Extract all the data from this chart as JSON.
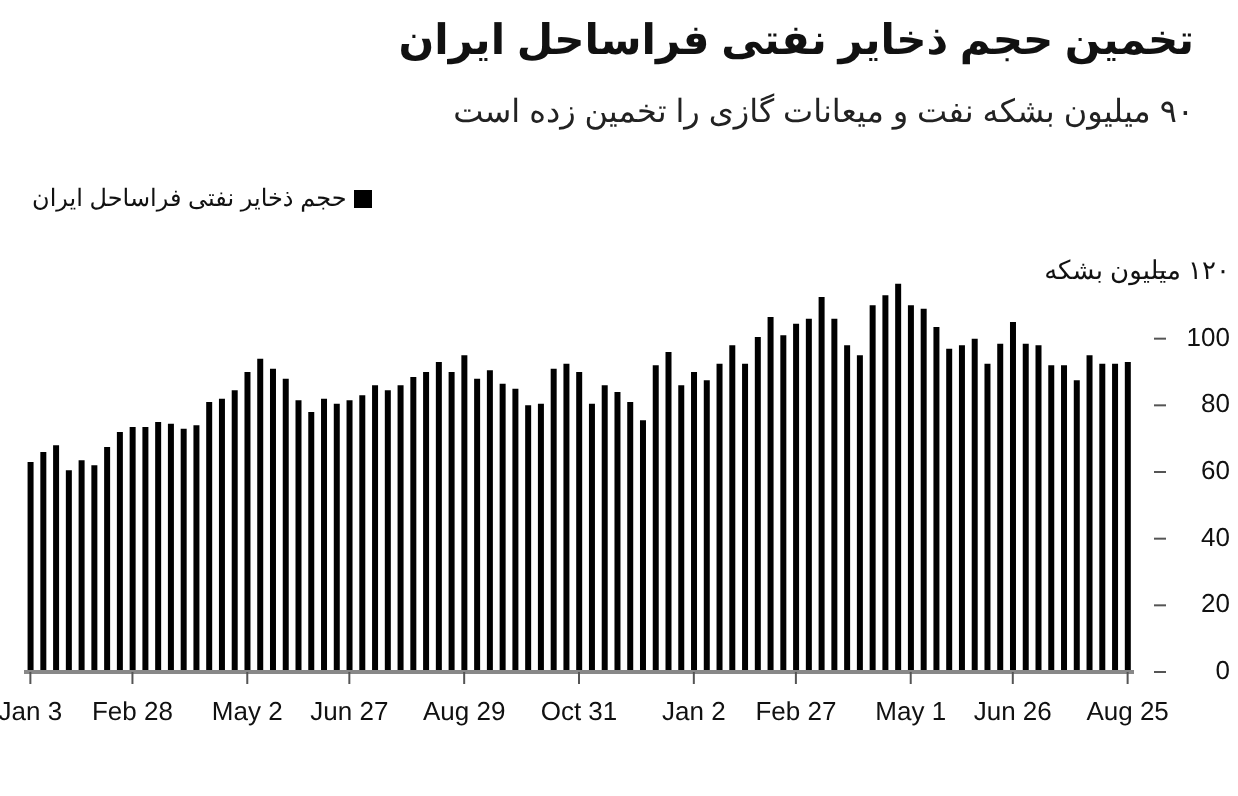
{
  "chart_data": {
    "type": "bar",
    "title": "تخمین حجم ذخایر نفتی فراساحل ایران",
    "subtitle": "۹۰ میلیون بشکه نفت و میعانات گازی را تخمین زده است",
    "categories": [
      "Jan 3",
      null,
      null,
      null,
      null,
      null,
      null,
      null,
      "Feb 28",
      null,
      null,
      null,
      null,
      null,
      null,
      null,
      null,
      "May 2",
      null,
      null,
      null,
      null,
      null,
      null,
      null,
      "Jun 27",
      null,
      null,
      null,
      null,
      null,
      null,
      null,
      null,
      "Aug 29",
      null,
      null,
      null,
      null,
      null,
      null,
      null,
      null,
      "Oct 31",
      null,
      null,
      null,
      null,
      null,
      null,
      null,
      null,
      "Jan 2",
      null,
      null,
      null,
      null,
      null,
      null,
      null,
      "Feb 27",
      null,
      null,
      null,
      null,
      null,
      null,
      null,
      null,
      "May 1",
      null,
      null,
      null,
      null,
      null,
      null,
      null,
      "Jun 26",
      null,
      null,
      null,
      null,
      null,
      null,
      null,
      null,
      "Aug 25"
    ],
    "series": [
      {
        "name": "حجم ذخایر نفتی فراساحل ایران",
        "color": "#000000",
        "values": [
          63,
          66,
          68,
          60.5,
          63.5,
          62,
          67.5,
          72,
          73.5,
          73.5,
          75,
          74.5,
          73,
          74,
          81,
          82,
          84.5,
          90,
          94,
          91,
          88,
          81.5,
          78,
          82,
          80.5,
          81.5,
          83,
          86,
          84.5,
          86,
          88.5,
          90,
          93,
          90,
          95,
          88,
          90.5,
          86.5,
          85,
          80,
          80.5,
          91,
          92.5,
          90,
          80.5,
          86,
          84,
          81,
          75.5,
          92,
          96,
          86,
          90,
          87.5,
          92.5,
          98,
          92.5,
          100.5,
          106.5,
          101,
          104.5,
          106,
          112.5,
          106,
          98,
          95,
          110,
          113,
          116.5,
          110,
          109,
          103.5,
          97,
          98,
          100,
          92.5,
          98.5,
          105,
          98.5,
          98,
          92,
          92,
          87.5,
          95,
          92.5,
          92.5,
          93
        ]
      }
    ],
    "ylim": [
      0,
      120
    ],
    "yticks": [
      0,
      20,
      40,
      60,
      80,
      100,
      {
        "value": 120,
        "label": "۱۲۰ میلیون بشکه"
      }
    ],
    "legend": "top left"
  }
}
